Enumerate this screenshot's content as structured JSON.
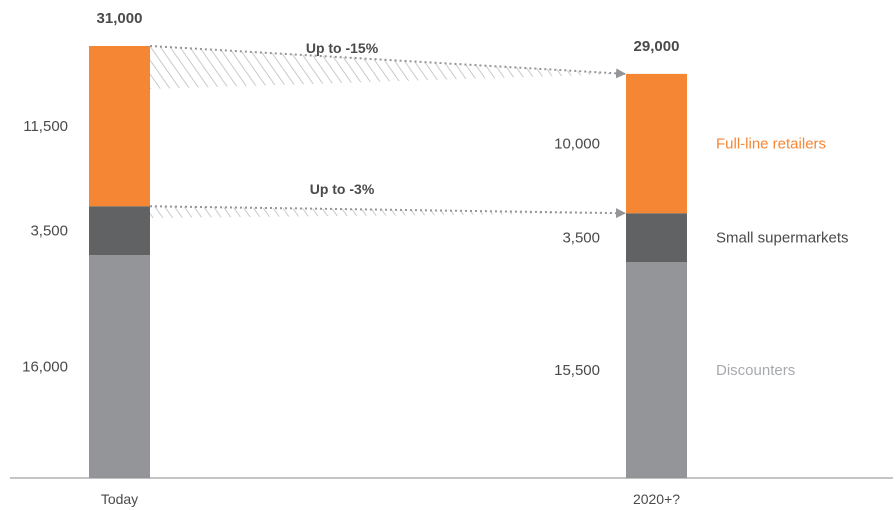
{
  "chart_data": {
    "type": "bar",
    "stacked": true,
    "categories": [
      "Today",
      "2020+?"
    ],
    "totals": [
      "31,000",
      "29,000"
    ],
    "series": [
      {
        "name": "Discounters",
        "values": [
          16000,
          15500
        ],
        "labels": [
          "16,000",
          "15,500"
        ],
        "color": "#939598"
      },
      {
        "name": "Small supermarkets",
        "values": [
          3500,
          3500
        ],
        "labels": [
          "3,500",
          "3,500"
        ],
        "color": "#616264"
      },
      {
        "name": "Full-line retailers",
        "values": [
          11500,
          10000
        ],
        "labels": [
          "11,500",
          "10,000"
        ],
        "color": "#f58634"
      }
    ],
    "legend_colors": [
      "#a7a9ac",
      "#4a4a4a",
      "#f58634"
    ],
    "annotations": [
      {
        "text": "Up to -15%",
        "from_series": "Full-line retailers"
      },
      {
        "text": "Up to -3%",
        "from_series": "Small supermarkets"
      }
    ],
    "grid": false,
    "legend_position": "right"
  }
}
